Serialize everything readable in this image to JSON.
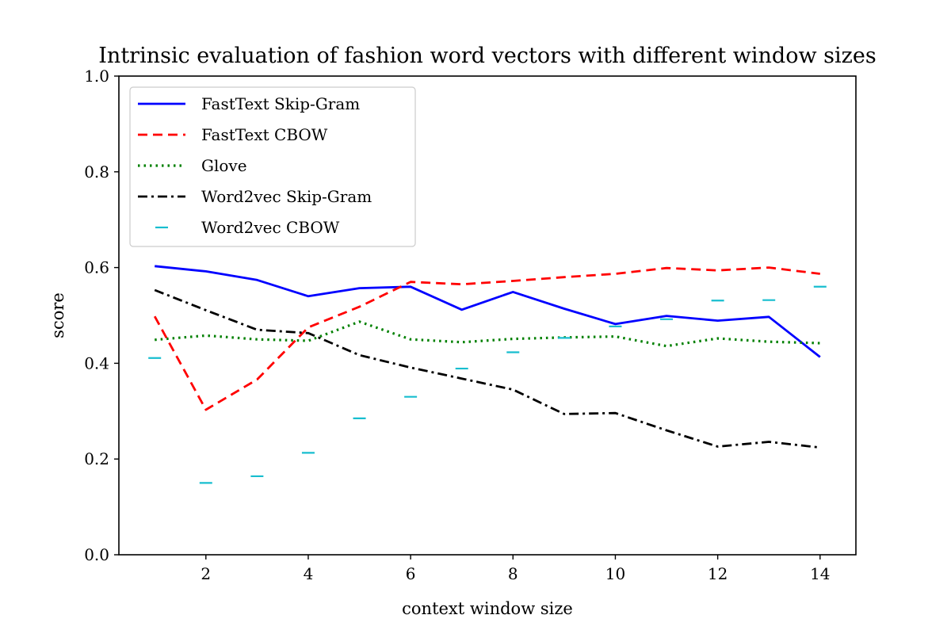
{
  "chart_data": {
    "type": "line",
    "title": "Intrinsic evaluation of fashion word vectors with different window sizes",
    "xlabel": "context window size",
    "ylabel": "score",
    "xlim": [
      0.3,
      14.7
    ],
    "ylim": [
      0.0,
      1.0
    ],
    "x_ticks": [
      2,
      4,
      6,
      8,
      10,
      12,
      14
    ],
    "y_ticks": [
      0.0,
      0.2,
      0.4,
      0.6,
      0.8,
      1.0
    ],
    "x_tick_labels": [
      "2",
      "4",
      "6",
      "8",
      "10",
      "12",
      "14"
    ],
    "y_tick_labels": [
      "0.0",
      "0.2",
      "0.4",
      "0.6",
      "0.8",
      "1.0"
    ],
    "grid": false,
    "legend_position": "top-left",
    "x": [
      1,
      2,
      3,
      4,
      5,
      6,
      7,
      8,
      9,
      10,
      11,
      12,
      13,
      14
    ],
    "series": [
      {
        "name": "FastText Skip-Gram",
        "color": "#0000ff",
        "style": "solid",
        "values": [
          0.603,
          0.592,
          0.574,
          0.54,
          0.557,
          0.56,
          0.512,
          0.549,
          0.514,
          0.482,
          0.499,
          0.489,
          0.497,
          0.413
        ]
      },
      {
        "name": "FastText CBOW",
        "color": "#ff0000",
        "style": "dashed",
        "values": [
          0.498,
          0.303,
          0.366,
          0.475,
          0.518,
          0.57,
          0.565,
          0.572,
          0.58,
          0.587,
          0.599,
          0.594,
          0.6,
          0.587
        ]
      },
      {
        "name": "Glove",
        "color": "#008000",
        "style": "dotted",
        "values": [
          0.449,
          0.458,
          0.45,
          0.447,
          0.487,
          0.45,
          0.444,
          0.451,
          0.454,
          0.456,
          0.436,
          0.452,
          0.445,
          0.442
        ]
      },
      {
        "name": "Word2vec Skip-Gram",
        "color": "#000000",
        "style": "dashdot",
        "values": [
          0.553,
          0.511,
          0.47,
          0.463,
          0.417,
          0.391,
          0.368,
          0.345,
          0.294,
          0.296,
          0.26,
          0.226,
          0.236,
          0.224
        ]
      },
      {
        "name": "Word2vec CBOW",
        "color": "#17becf",
        "style": "hline-marker",
        "values": [
          0.411,
          0.15,
          0.164,
          0.213,
          0.285,
          0.33,
          0.389,
          0.423,
          0.453,
          0.477,
          0.492,
          0.531,
          0.532,
          0.56
        ]
      }
    ]
  }
}
